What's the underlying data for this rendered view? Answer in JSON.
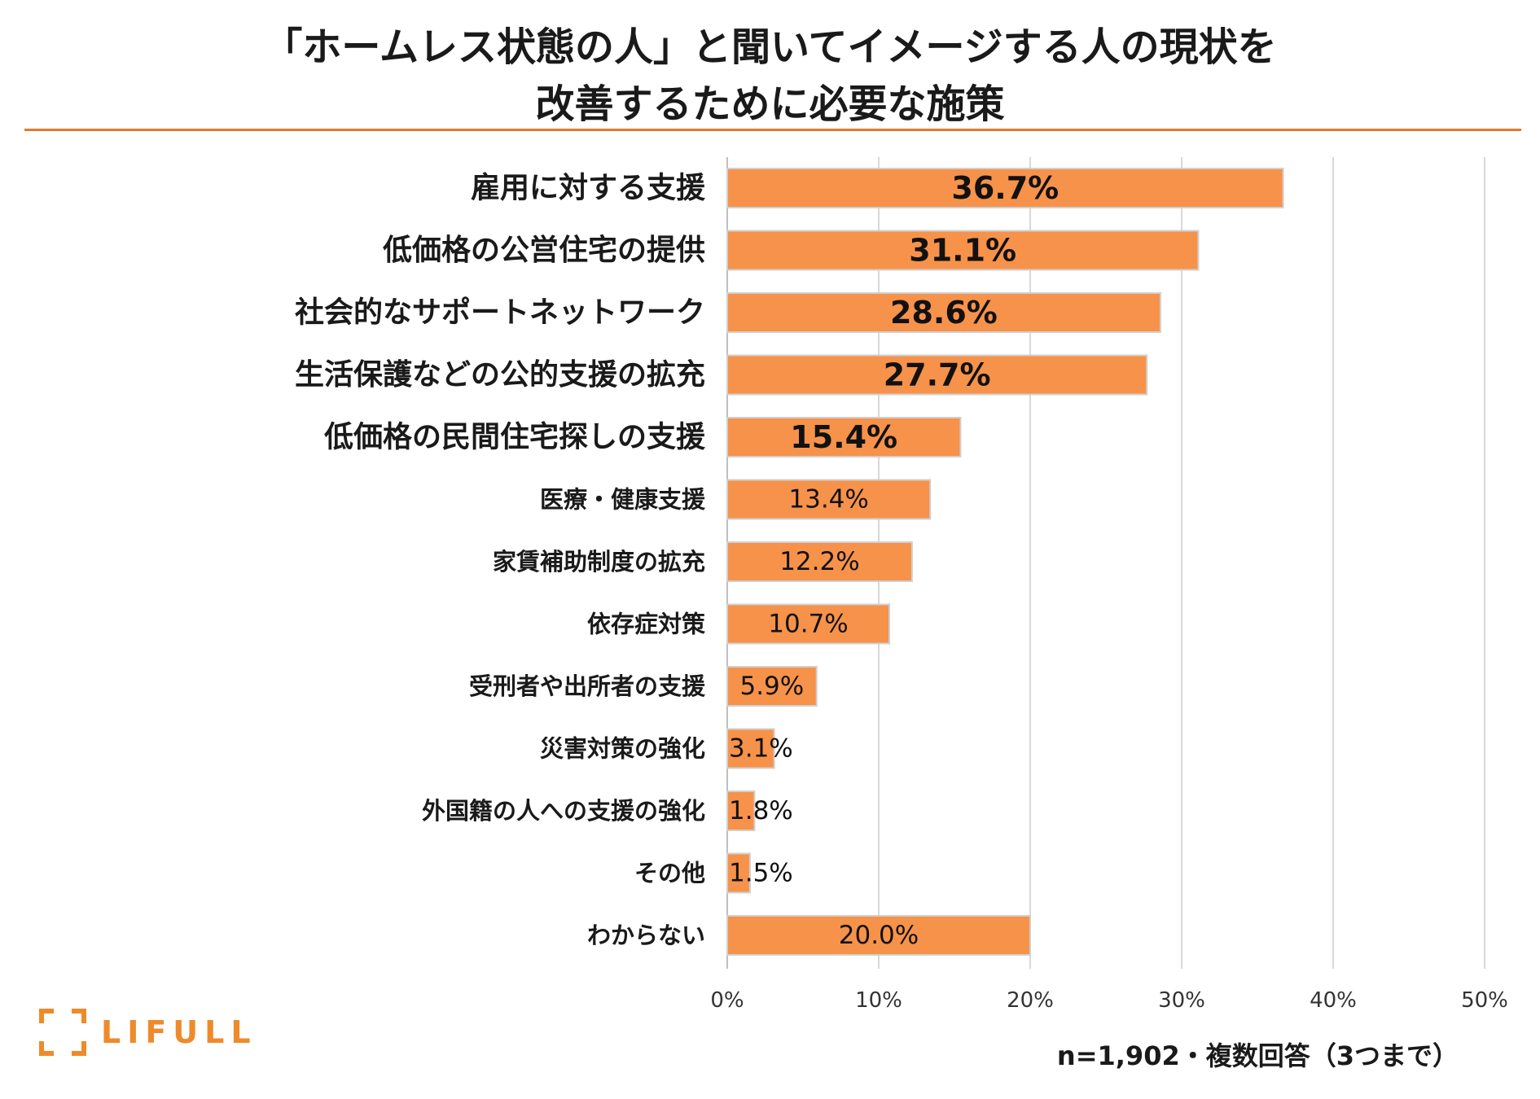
{
  "title": {
    "line1": "「ホームレス状態の人」と聞いてイメージする人の現状を",
    "line2": "改善するために必要な施策"
  },
  "footnote": "n=1,902・複数回答（3つまで）",
  "logo": {
    "text": "LIFULL"
  },
  "colors": {
    "bar": "#f7924a",
    "bar_stroke": "#d0d0d0",
    "grid": "#d9d9d9",
    "rule": "#e07b2e",
    "brand": "#ef8a2a"
  },
  "chart_data": {
    "type": "bar",
    "orientation": "horizontal",
    "title": "「ホームレス状態の人」と聞いてイメージする人の現状を改善するために必要な施策",
    "categories": [
      "雇用に対する支援",
      "低価格の公営住宅の提供",
      "社会的なサポートネットワーク",
      "生活保護などの公的支援の拡充",
      "低価格の民間住宅探しの支援",
      "医療・健康支援",
      "家賃補助制度の拡充",
      "依存症対策",
      "受刑者や出所者の支援",
      "災害対策の強化",
      "外国籍の人への支援の強化",
      "その他",
      "わからない"
    ],
    "values": [
      36.7,
      31.1,
      28.6,
      27.7,
      15.4,
      13.4,
      12.2,
      10.7,
      5.9,
      3.1,
      1.8,
      1.5,
      20.0
    ],
    "value_labels": [
      "36.7%",
      "31.1%",
      "28.6%",
      "27.7%",
      "15.4%",
      "13.4%",
      "12.2%",
      "10.7%",
      "5.9%",
      "3.1%",
      "1.8%",
      "1.5%",
      "20.0%"
    ],
    "xlim": [
      0,
      50
    ],
    "x_ticks": [
      0,
      10,
      20,
      30,
      40,
      50
    ],
    "x_tick_labels": [
      "0%",
      "10%",
      "20%",
      "30%",
      "40%",
      "50%"
    ],
    "xlabel": "",
    "ylabel": "",
    "grid": true,
    "legend": "none"
  }
}
